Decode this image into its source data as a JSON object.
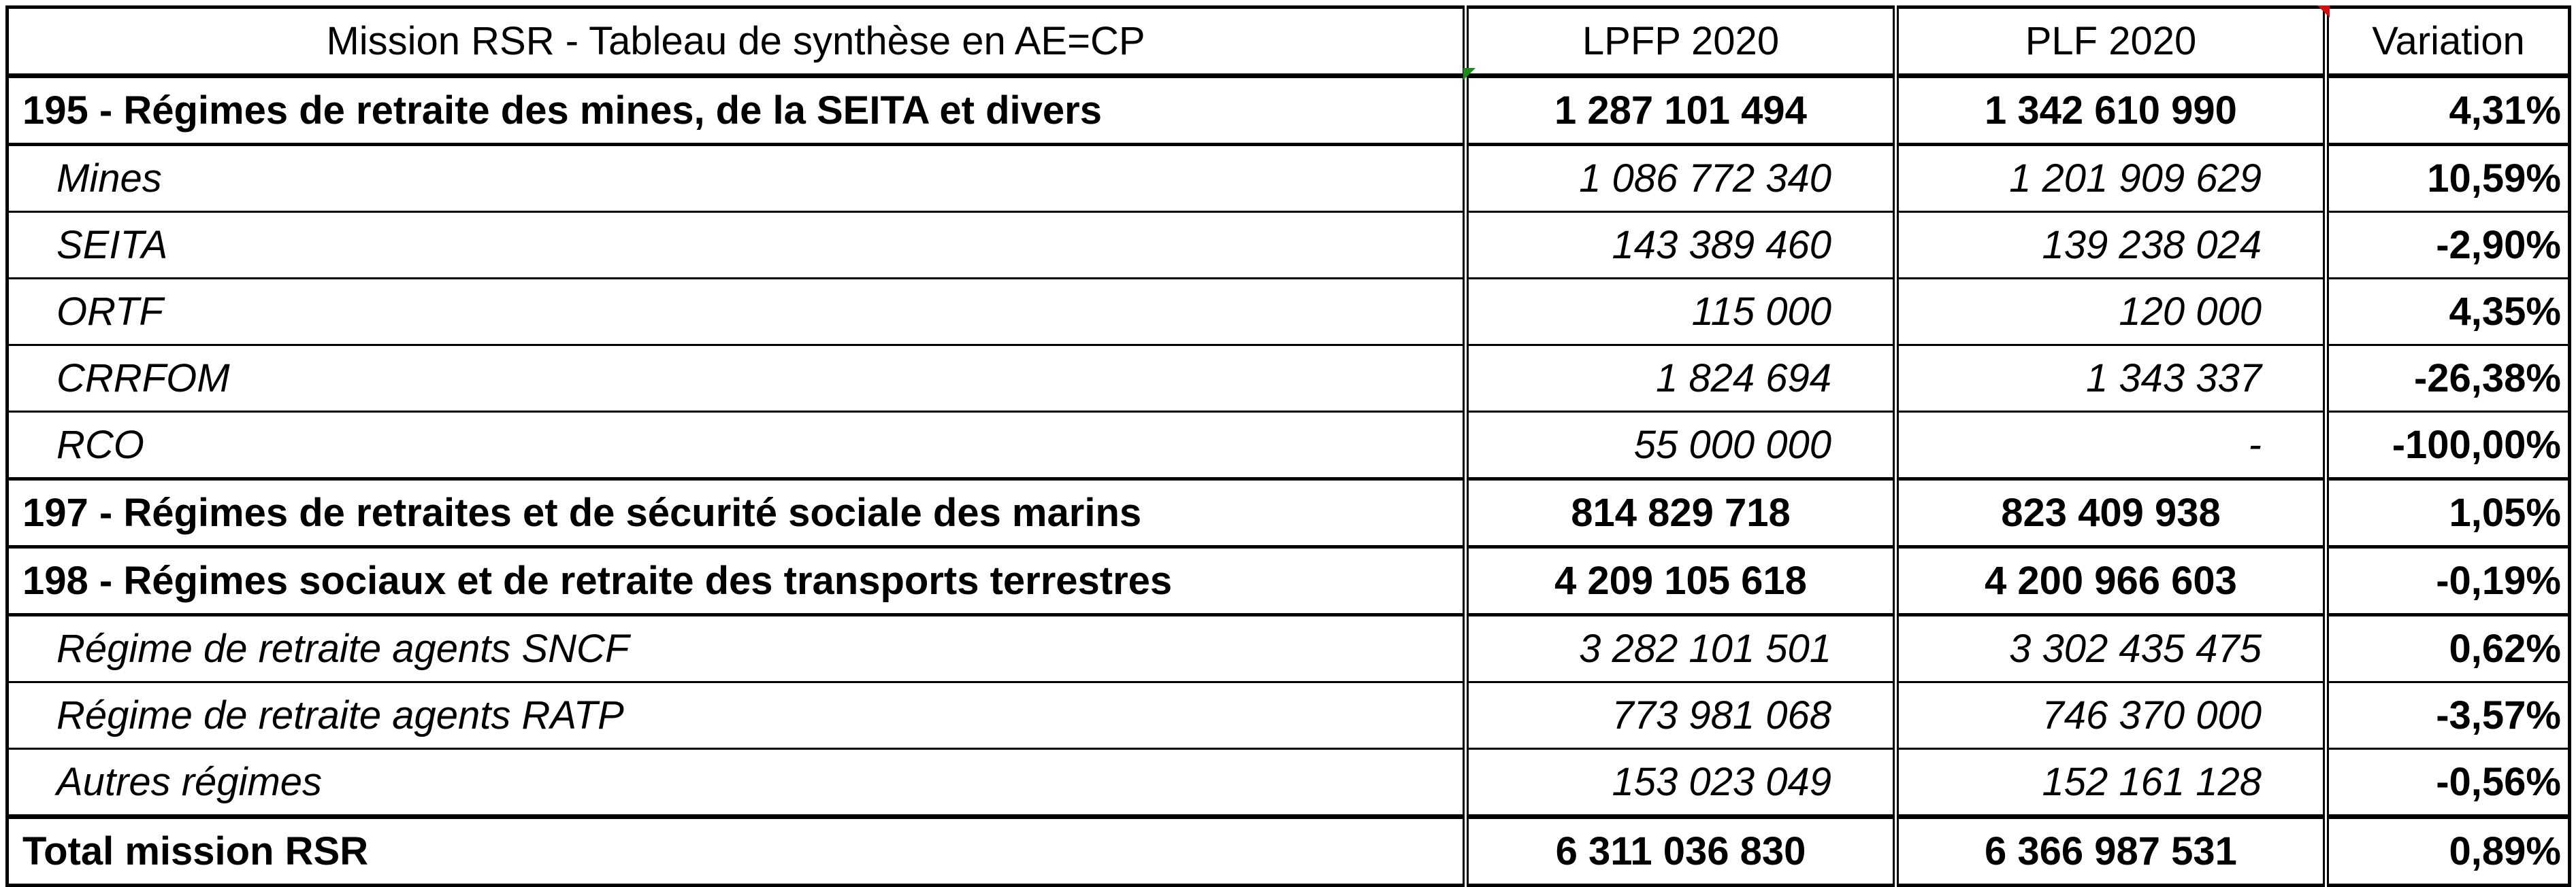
{
  "header": {
    "title": "Mission RSR - Tableau de synthèse en AE=CP",
    "col_lpfp": "LPFP 2020",
    "col_plf": "PLF 2020",
    "col_variation": "Variation"
  },
  "rows": [
    {
      "type": "section",
      "label": "195 - Régimes de retraite des mines, de la SEITA et divers",
      "lpfp": "1 287 101 494",
      "plf": "1 342 610 990",
      "variation": "4,31%"
    },
    {
      "type": "sub",
      "label": "Mines",
      "lpfp": "1 086 772 340",
      "plf": "1 201 909 629",
      "variation": "10,59%"
    },
    {
      "type": "sub",
      "label": "SEITA",
      "lpfp": "143 389 460",
      "plf": "139 238 024",
      "variation": "-2,90%"
    },
    {
      "type": "sub",
      "label": "ORTF",
      "lpfp": "115 000",
      "plf": "120 000",
      "variation": "4,35%"
    },
    {
      "type": "sub",
      "label": "CRRFOM",
      "lpfp": "1 824 694",
      "plf": "1 343 337",
      "variation": "-26,38%"
    },
    {
      "type": "sub",
      "label": "RCO",
      "lpfp": "55 000 000",
      "plf": "-",
      "variation": "-100,00%"
    },
    {
      "type": "section",
      "label": "197 - Régimes de retraites et de sécurité sociale des marins",
      "lpfp": "814 829 718",
      "plf": "823 409 938",
      "variation": "1,05%"
    },
    {
      "type": "section",
      "label": "198 - Régimes sociaux et de retraite des transports terrestres",
      "lpfp": "4 209 105 618",
      "plf": "4 200 966 603",
      "variation": "-0,19%"
    },
    {
      "type": "sub",
      "label": "Régime de retraite agents SNCF",
      "lpfp": "3 282 101 501",
      "plf": "3 302 435 475",
      "variation": "0,62%"
    },
    {
      "type": "sub",
      "label": "Régime de retraite agents RATP",
      "lpfp": "773 981 068",
      "plf": "746 370 000",
      "variation": "-3,57%"
    },
    {
      "type": "sub",
      "label": "Autres régimes",
      "lpfp": "153 023 049",
      "plf": "152 161 128",
      "variation": "-0,56%"
    },
    {
      "type": "total",
      "label": "Total mission RSR",
      "lpfp": "6 311 036 830",
      "plf": "6 366 987 531",
      "variation": "0,89%"
    }
  ],
  "colors": {
    "marker_green": "#1a8a1a",
    "marker_red": "#d01010"
  }
}
